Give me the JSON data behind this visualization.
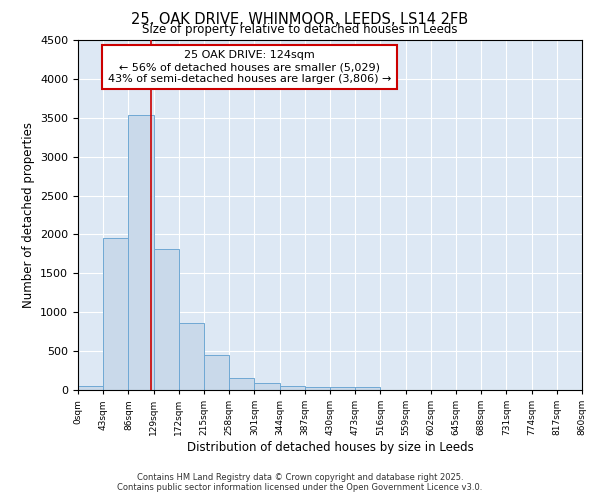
{
  "title": "25, OAK DRIVE, WHINMOOR, LEEDS, LS14 2FB",
  "subtitle": "Size of property relative to detached houses in Leeds",
  "xlabel": "Distribution of detached houses by size in Leeds",
  "ylabel": "Number of detached properties",
  "bin_edges": [
    0,
    43,
    86,
    129,
    172,
    215,
    258,
    301,
    344,
    387,
    430,
    473,
    516,
    559,
    602,
    645,
    688,
    731,
    774,
    817,
    860
  ],
  "bar_heights": [
    50,
    1950,
    3530,
    1810,
    860,
    450,
    160,
    90,
    55,
    45,
    40,
    35,
    5,
    3,
    2,
    2,
    1,
    1,
    1,
    1
  ],
  "bar_color": "#c9d9ea",
  "bar_edge_color": "#6fa8d4",
  "property_size": 124,
  "property_label": "25 OAK DRIVE: 124sqm",
  "annotation_line1": "← 56% of detached houses are smaller (5,029)",
  "annotation_line2": "43% of semi-detached houses are larger (3,806) →",
  "vline_color": "#cc0000",
  "annotation_box_edgecolor": "#cc0000",
  "background_color": "#dde8f4",
  "ylim": [
    0,
    4500
  ],
  "tick_labels": [
    "0sqm",
    "43sqm",
    "86sqm",
    "129sqm",
    "172sqm",
    "215sqm",
    "258sqm",
    "301sqm",
    "344sqm",
    "387sqm",
    "430sqm",
    "473sqm",
    "516sqm",
    "559sqm",
    "602sqm",
    "645sqm",
    "688sqm",
    "731sqm",
    "774sqm",
    "817sqm",
    "860sqm"
  ],
  "footer1": "Contains HM Land Registry data © Crown copyright and database right 2025.",
  "footer2": "Contains public sector information licensed under the Open Government Licence v3.0."
}
